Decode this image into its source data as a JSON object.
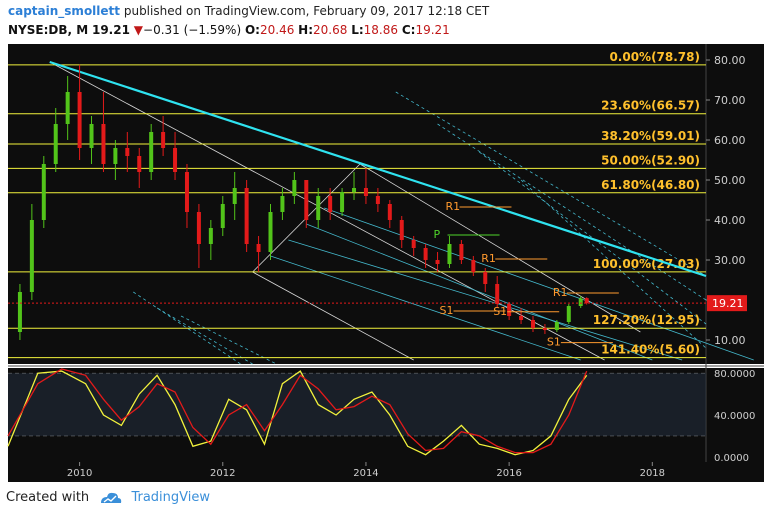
{
  "header": {
    "author": "captain_smollett",
    "published_text": " published on TradingView.com, February 09, 2017 12:18 CET",
    "symbol": "NYSE:DB, M",
    "last": "19.21",
    "change": "−0.31 (−1.59%)",
    "open_label": "O:",
    "open": "20.46",
    "high_label": "H:",
    "high": "20.68",
    "low_label": "L:",
    "low": "18.86",
    "close_label": "C:",
    "close": "19.21"
  },
  "footer": {
    "created_with": "Created with",
    "brand": "TradingView"
  },
  "colors": {
    "background": "#0d0d0d",
    "candle_up": "#52c41a",
    "candle_down": "#e31a1a",
    "fib_line": "#f2f23c",
    "fib_label": "#ffc02c",
    "trendline": "#2fe3f0",
    "channel_white": "#d8d8d8",
    "channel_cyan": "#44b8cc",
    "stoch_k": "#f2f23c",
    "stoch_d": "#e31a1a",
    "price_tag": "#e31a1a",
    "pivot_r": "#ff9a2e",
    "pivot_p": "#4fd52a"
  },
  "chart_data": [
    {
      "type": "candlestick",
      "title": "",
      "timeframe": "Monthly",
      "x_ticks": [
        "2010",
        "2012",
        "2014",
        "2016",
        "2018"
      ],
      "y_ticks": [
        "10.00",
        "20.00",
        "30.00",
        "40.00",
        "50.00",
        "60.00",
        "70.00",
        "80.00"
      ],
      "ylim": [
        4,
        84
      ],
      "xlim": [
        "2009-01",
        "2018-10"
      ],
      "last_price_tag": "19.21",
      "fibonacci_levels": [
        {
          "label": "0.00%(78.78)",
          "value": 78.78
        },
        {
          "label": "23.60%(66.57)",
          "value": 66.57
        },
        {
          "label": "38.20%(59.01)",
          "value": 59.01
        },
        {
          "label": "50.00%(52.90)",
          "value": 52.9
        },
        {
          "label": "61.80%(46.80)",
          "value": 46.8
        },
        {
          "label": "100.00%(27.03)",
          "value": 27.03
        },
        {
          "label": "127.20%(12.95)",
          "value": 12.95
        },
        {
          "label": "141.40%(5.60)",
          "value": 5.6
        }
      ],
      "pivot_labels": [
        {
          "label": "R1",
          "date": "2015-03",
          "value": 42.5
        },
        {
          "label": "P",
          "date": "2015-01",
          "value": 35.5
        },
        {
          "label": "R1",
          "date": "2015-09",
          "value": 29.5
        },
        {
          "label": "S1",
          "date": "2015-02",
          "value": 16.5
        },
        {
          "label": "S1",
          "date": "2015-11",
          "value": 16.3
        },
        {
          "label": "R1",
          "date": "2016-09",
          "value": 21.0
        },
        {
          "label": "S1",
          "date": "2016-08",
          "value": 8.6
        }
      ],
      "candles": [
        {
          "date": "2009-03",
          "o": 12.0,
          "h": 24.0,
          "l": 10.0,
          "c": 22.0
        },
        {
          "date": "2009-05",
          "o": 22.0,
          "h": 44.0,
          "l": 20.0,
          "c": 40.0
        },
        {
          "date": "2009-07",
          "o": 40.0,
          "h": 56.0,
          "l": 38.0,
          "c": 54.0
        },
        {
          "date": "2009-09",
          "o": 54.0,
          "h": 68.0,
          "l": 52.0,
          "c": 64.0
        },
        {
          "date": "2009-11",
          "o": 64.0,
          "h": 76.0,
          "l": 60.0,
          "c": 72.0
        },
        {
          "date": "2010-01",
          "o": 72.0,
          "h": 78.8,
          "l": 55.0,
          "c": 58.0
        },
        {
          "date": "2010-03",
          "o": 58.0,
          "h": 66.0,
          "l": 54.0,
          "c": 64.0
        },
        {
          "date": "2010-05",
          "o": 64.0,
          "h": 72.0,
          "l": 52.0,
          "c": 54.0
        },
        {
          "date": "2010-07",
          "o": 54.0,
          "h": 60.0,
          "l": 50.0,
          "c": 58.0
        },
        {
          "date": "2010-09",
          "o": 58.0,
          "h": 62.0,
          "l": 52.0,
          "c": 56.0
        },
        {
          "date": "2010-11",
          "o": 56.0,
          "h": 58.0,
          "l": 48.0,
          "c": 52.0
        },
        {
          "date": "2011-01",
          "o": 52.0,
          "h": 64.0,
          "l": 50.0,
          "c": 62.0
        },
        {
          "date": "2011-03",
          "o": 62.0,
          "h": 66.0,
          "l": 56.0,
          "c": 58.0
        },
        {
          "date": "2011-05",
          "o": 58.0,
          "h": 62.0,
          "l": 50.0,
          "c": 52.0
        },
        {
          "date": "2011-07",
          "o": 52.0,
          "h": 54.0,
          "l": 38.0,
          "c": 42.0
        },
        {
          "date": "2011-09",
          "o": 42.0,
          "h": 44.0,
          "l": 28.0,
          "c": 34.0
        },
        {
          "date": "2011-11",
          "o": 34.0,
          "h": 40.0,
          "l": 30.0,
          "c": 38.0
        },
        {
          "date": "2012-01",
          "o": 38.0,
          "h": 46.0,
          "l": 36.0,
          "c": 44.0
        },
        {
          "date": "2012-03",
          "o": 44.0,
          "h": 52.0,
          "l": 40.0,
          "c": 48.0
        },
        {
          "date": "2012-05",
          "o": 48.0,
          "h": 50.0,
          "l": 32.0,
          "c": 34.0
        },
        {
          "date": "2012-07",
          "o": 34.0,
          "h": 36.0,
          "l": 27.0,
          "c": 32.0
        },
        {
          "date": "2012-09",
          "o": 32.0,
          "h": 44.0,
          "l": 30.0,
          "c": 42.0
        },
        {
          "date": "2012-11",
          "o": 42.0,
          "h": 48.0,
          "l": 40.0,
          "c": 46.0
        },
        {
          "date": "2013-01",
          "o": 46.0,
          "h": 52.0,
          "l": 44.0,
          "c": 50.0
        },
        {
          "date": "2013-03",
          "o": 50.0,
          "h": 50.0,
          "l": 38.0,
          "c": 40.0
        },
        {
          "date": "2013-05",
          "o": 40.0,
          "h": 48.0,
          "l": 38.0,
          "c": 46.0
        },
        {
          "date": "2013-07",
          "o": 46.0,
          "h": 48.0,
          "l": 40.0,
          "c": 42.0
        },
        {
          "date": "2013-09",
          "o": 42.0,
          "h": 48.0,
          "l": 41.0,
          "c": 47.0
        },
        {
          "date": "2013-11",
          "o": 47.0,
          "h": 52.0,
          "l": 45.0,
          "c": 48.0
        },
        {
          "date": "2014-01",
          "o": 48.0,
          "h": 53.0,
          "l": 44.0,
          "c": 46.0
        },
        {
          "date": "2014-03",
          "o": 46.0,
          "h": 48.0,
          "l": 42.0,
          "c": 44.0
        },
        {
          "date": "2014-05",
          "o": 44.0,
          "h": 45.0,
          "l": 38.0,
          "c": 40.0
        },
        {
          "date": "2014-07",
          "o": 40.0,
          "h": 41.0,
          "l": 33.0,
          "c": 35.0
        },
        {
          "date": "2014-09",
          "o": 35.0,
          "h": 36.0,
          "l": 31.0,
          "c": 33.0
        },
        {
          "date": "2014-11",
          "o": 33.0,
          "h": 34.0,
          "l": 28.0,
          "c": 30.0
        },
        {
          "date": "2015-01",
          "o": 30.0,
          "h": 32.0,
          "l": 27.0,
          "c": 29.0
        },
        {
          "date": "2015-03",
          "o": 29.0,
          "h": 36.0,
          "l": 28.0,
          "c": 34.0
        },
        {
          "date": "2015-05",
          "o": 34.0,
          "h": 35.0,
          "l": 29.0,
          "c": 30.0
        },
        {
          "date": "2015-07",
          "o": 30.0,
          "h": 31.0,
          "l": 26.0,
          "c": 27.0
        },
        {
          "date": "2015-09",
          "o": 27.0,
          "h": 28.0,
          "l": 22.0,
          "c": 24.0
        },
        {
          "date": "2015-11",
          "o": 24.0,
          "h": 26.0,
          "l": 18.0,
          "c": 19.0
        },
        {
          "date": "2016-01",
          "o": 19.0,
          "h": 19.5,
          "l": 15.0,
          "c": 16.0
        },
        {
          "date": "2016-03",
          "o": 16.0,
          "h": 18.0,
          "l": 14.0,
          "c": 15.0
        },
        {
          "date": "2016-05",
          "o": 15.0,
          "h": 16.0,
          "l": 12.0,
          "c": 13.0
        },
        {
          "date": "2016-07",
          "o": 13.0,
          "h": 14.0,
          "l": 11.5,
          "c": 12.5
        },
        {
          "date": "2016-09",
          "o": 12.5,
          "h": 15.0,
          "l": 12.0,
          "c": 14.5
        },
        {
          "date": "2016-11",
          "o": 14.5,
          "h": 19.0,
          "l": 14.0,
          "c": 18.5
        },
        {
          "date": "2017-01",
          "o": 18.5,
          "h": 21.0,
          "l": 18.0,
          "c": 20.4
        },
        {
          "date": "2017-02",
          "o": 20.46,
          "h": 20.68,
          "l": 18.86,
          "c": 19.21
        }
      ],
      "trendlines": [
        {
          "name": "main-downtrend",
          "from": [
            "2009-08",
            79.5
          ],
          "to": [
            "2018-10",
            26.0
          ]
        }
      ],
      "channels": {
        "white": [
          {
            "from": [
              "2009-08",
              79.5
            ],
            "to": [
              "2017-05",
              5.0
            ]
          },
          {
            "from": [
              "2012-06",
              27.0
            ],
            "to": [
              "2013-12",
              54.0
            ]
          },
          {
            "from": [
              "2013-12",
              54.0
            ],
            "to": [
              "2017-11",
              12.0
            ]
          },
          {
            "from": [
              "2012-06",
              27.0
            ],
            "to": [
              "2014-09",
              5.0
            ]
          }
        ]
      }
    },
    {
      "type": "line",
      "indicator": "Stochastic",
      "y_ticks": [
        "80.0000",
        "40.0000",
        "0.0000"
      ],
      "ylim": [
        -5,
        85
      ],
      "bands": [
        80,
        20
      ],
      "series": [
        {
          "name": "",
          "color_key": "stoch_k",
          "values": [
            {
              "date": "2009-01",
              "v": 10
            },
            {
              "date": "2009-06",
              "v": 80
            },
            {
              "date": "2009-10",
              "v": 82
            },
            {
              "date": "2010-02",
              "v": 70
            },
            {
              "date": "2010-05",
              "v": 40
            },
            {
              "date": "2010-08",
              "v": 30
            },
            {
              "date": "2010-11",
              "v": 60
            },
            {
              "date": "2011-02",
              "v": 78
            },
            {
              "date": "2011-05",
              "v": 50
            },
            {
              "date": "2011-08",
              "v": 10
            },
            {
              "date": "2011-11",
              "v": 15
            },
            {
              "date": "2012-02",
              "v": 55
            },
            {
              "date": "2012-05",
              "v": 45
            },
            {
              "date": "2012-08",
              "v": 12
            },
            {
              "date": "2012-11",
              "v": 70
            },
            {
              "date": "2013-02",
              "v": 82
            },
            {
              "date": "2013-05",
              "v": 50
            },
            {
              "date": "2013-08",
              "v": 40
            },
            {
              "date": "2013-11",
              "v": 55
            },
            {
              "date": "2014-02",
              "v": 62
            },
            {
              "date": "2014-05",
              "v": 40
            },
            {
              "date": "2014-08",
              "v": 10
            },
            {
              "date": "2014-11",
              "v": 2
            },
            {
              "date": "2015-02",
              "v": 15
            },
            {
              "date": "2015-05",
              "v": 30
            },
            {
              "date": "2015-08",
              "v": 12
            },
            {
              "date": "2015-11",
              "v": 8
            },
            {
              "date": "2016-02",
              "v": 2
            },
            {
              "date": "2016-05",
              "v": 6
            },
            {
              "date": "2016-08",
              "v": 20
            },
            {
              "date": "2016-11",
              "v": 55
            },
            {
              "date": "2017-02",
              "v": 78
            }
          ]
        },
        {
          "name": "",
          "color_key": "stoch_d",
          "values": [
            {
              "date": "2009-01",
              "v": 20
            },
            {
              "date": "2009-06",
              "v": 70
            },
            {
              "date": "2009-10",
              "v": 84
            },
            {
              "date": "2010-02",
              "v": 78
            },
            {
              "date": "2010-05",
              "v": 55
            },
            {
              "date": "2010-08",
              "v": 35
            },
            {
              "date": "2010-11",
              "v": 48
            },
            {
              "date": "2011-02",
              "v": 70
            },
            {
              "date": "2011-05",
              "v": 62
            },
            {
              "date": "2011-08",
              "v": 28
            },
            {
              "date": "2011-11",
              "v": 12
            },
            {
              "date": "2012-02",
              "v": 40
            },
            {
              "date": "2012-05",
              "v": 50
            },
            {
              "date": "2012-08",
              "v": 25
            },
            {
              "date": "2012-11",
              "v": 50
            },
            {
              "date": "2013-02",
              "v": 78
            },
            {
              "date": "2013-05",
              "v": 65
            },
            {
              "date": "2013-08",
              "v": 45
            },
            {
              "date": "2013-11",
              "v": 48
            },
            {
              "date": "2014-02",
              "v": 58
            },
            {
              "date": "2014-05",
              "v": 50
            },
            {
              "date": "2014-08",
              "v": 22
            },
            {
              "date": "2014-11",
              "v": 6
            },
            {
              "date": "2015-02",
              "v": 8
            },
            {
              "date": "2015-05",
              "v": 24
            },
            {
              "date": "2015-08",
              "v": 20
            },
            {
              "date": "2015-11",
              "v": 10
            },
            {
              "date": "2016-02",
              "v": 4
            },
            {
              "date": "2016-05",
              "v": 4
            },
            {
              "date": "2016-08",
              "v": 12
            },
            {
              "date": "2016-11",
              "v": 40
            },
            {
              "date": "2017-02",
              "v": 82
            }
          ]
        }
      ]
    }
  ]
}
